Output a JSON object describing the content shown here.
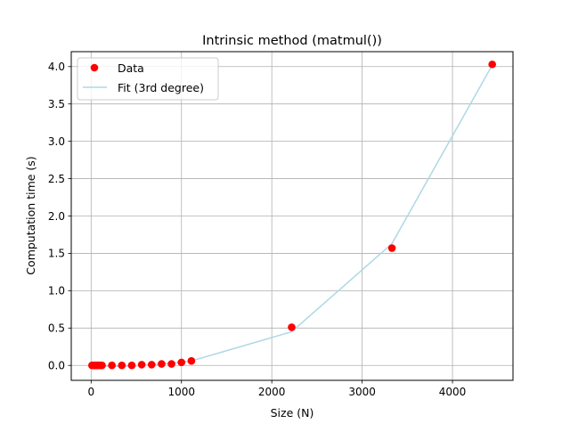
{
  "chart_data": {
    "type": "scatter",
    "title": "Intrinsic method (matmul())",
    "xlabel": "Size (N)",
    "ylabel": "Computation time (s)",
    "xlim": [
      -220,
      4670
    ],
    "ylim": [
      -0.2,
      4.2
    ],
    "grid": true,
    "legend_position": "top-left",
    "x_ticks": [
      0,
      1000,
      2000,
      3000,
      4000
    ],
    "x_tick_labels": [
      "0",
      "1000",
      "2000",
      "3000",
      "4000"
    ],
    "y_ticks": [
      0.0,
      0.5,
      1.0,
      1.5,
      2.0,
      2.5,
      3.0,
      3.5,
      4.0
    ],
    "y_tick_labels": [
      "0.0",
      "0.5",
      "1.0",
      "1.5",
      "2.0",
      "2.5",
      "3.0",
      "3.5",
      "4.0"
    ],
    "series": [
      {
        "name": "Data",
        "kind": "scatter",
        "color": "#ff0000",
        "points": [
          {
            "x": 10,
            "y": 0.0
          },
          {
            "x": 20,
            "y": 0.0
          },
          {
            "x": 30,
            "y": 0.0
          },
          {
            "x": 40,
            "y": 0.0
          },
          {
            "x": 50,
            "y": 0.0
          },
          {
            "x": 60,
            "y": 0.0
          },
          {
            "x": 70,
            "y": 0.0
          },
          {
            "x": 80,
            "y": 0.0
          },
          {
            "x": 90,
            "y": 0.0
          },
          {
            "x": 100,
            "y": 0.0
          },
          {
            "x": 110,
            "y": 0.0
          },
          {
            "x": 120,
            "y": 0.0
          },
          {
            "x": 230,
            "y": 0.0
          },
          {
            "x": 340,
            "y": 0.0
          },
          {
            "x": 450,
            "y": 0.0
          },
          {
            "x": 560,
            "y": 0.01
          },
          {
            "x": 670,
            "y": 0.01
          },
          {
            "x": 780,
            "y": 0.02
          },
          {
            "x": 890,
            "y": 0.02
          },
          {
            "x": 1000,
            "y": 0.04
          },
          {
            "x": 1110,
            "y": 0.06
          },
          {
            "x": 2220,
            "y": 0.51
          },
          {
            "x": 3330,
            "y": 1.57
          },
          {
            "x": 4440,
            "y": 4.03
          }
        ]
      },
      {
        "name": "Fit (3rd degree)",
        "kind": "line",
        "color": "#add8e6",
        "points": [
          {
            "x": 10,
            "y": -0.01
          },
          {
            "x": 120,
            "y": -0.01
          },
          {
            "x": 230,
            "y": -0.01
          },
          {
            "x": 340,
            "y": -0.01
          },
          {
            "x": 450,
            "y": -0.01
          },
          {
            "x": 560,
            "y": 0.0
          },
          {
            "x": 670,
            "y": 0.01
          },
          {
            "x": 780,
            "y": 0.02
          },
          {
            "x": 890,
            "y": 0.03
          },
          {
            "x": 1000,
            "y": 0.04
          },
          {
            "x": 1110,
            "y": 0.06
          },
          {
            "x": 2220,
            "y": 0.45
          },
          {
            "x": 3330,
            "y": 1.63
          },
          {
            "x": 4440,
            "y": 4.02
          }
        ]
      }
    ]
  }
}
